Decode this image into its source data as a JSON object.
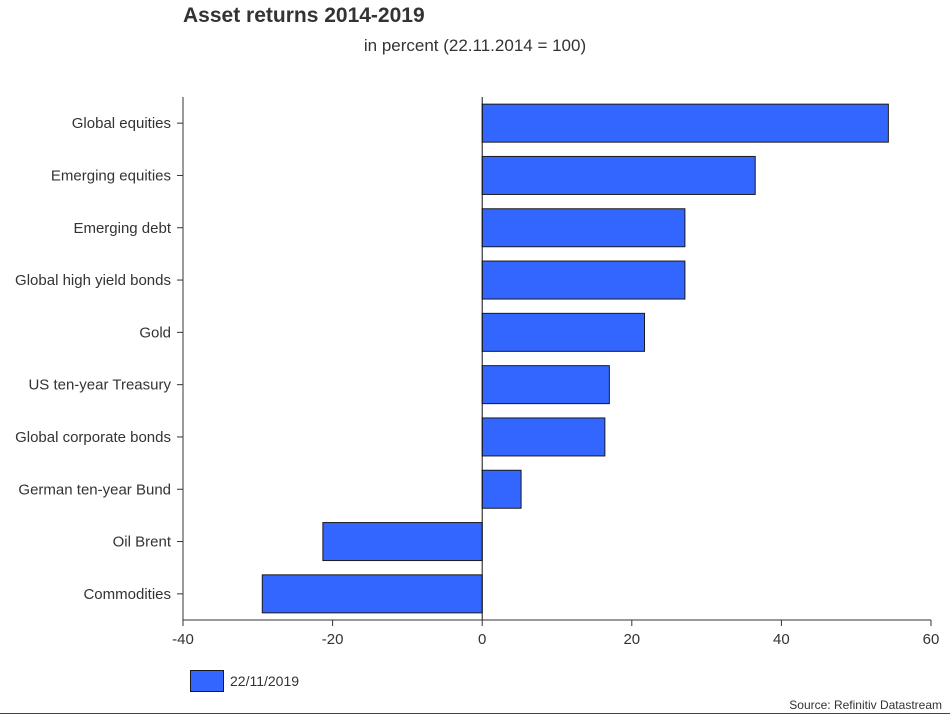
{
  "chart_data": {
    "type": "bar",
    "orientation": "horizontal",
    "title": "Asset returns 2014-2019",
    "subtitle": "in percent (22.11.2014 = 100)",
    "categories": [
      "Global equities",
      "Emerging equities",
      "Emerging debt",
      "Global high yield bonds",
      "Gold",
      "US ten-year Treasury",
      "Global corporate bonds",
      "German ten-year Bund",
      "Oil Brent",
      "Commodities"
    ],
    "series": [
      {
        "name": "22/11/2019",
        "color": "#3366ff",
        "values": [
          54.3,
          36.5,
          27.1,
          27.1,
          21.7,
          17.0,
          16.4,
          5.2,
          -21.3,
          -29.4
        ]
      }
    ],
    "xlim": [
      -40,
      60
    ],
    "xticks": [
      "-40",
      "-20",
      "0",
      "20",
      "40",
      "60"
    ],
    "grid": false,
    "legend_position": "bottom-left"
  },
  "legend": {
    "label": "22/11/2019"
  },
  "source": "Source: Refinitiv Datastream"
}
